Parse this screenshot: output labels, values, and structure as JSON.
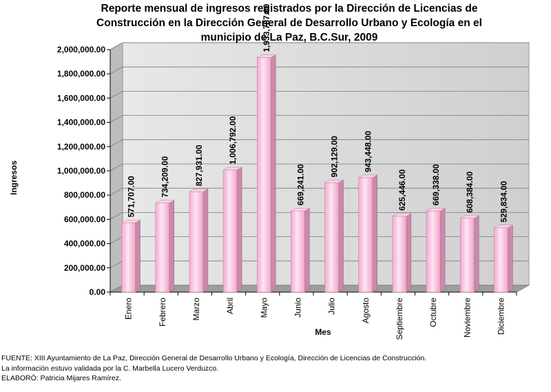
{
  "title_lines": [
    "Reporte mensual de ingresos registrados por la Dirección de Licencias de",
    "Construcción en la Dirección General de Desarrollo Urbano y Ecología en el",
    "municipio de La Paz, B.C.Sur, 2009"
  ],
  "footer_lines": [
    "FUENTE: XIII Ayuntamiento de La Paz, Dirección General de Desarrollo Urbano y Ecología, Dirección de Licencias de Construcción.",
    "La información estuvo validada por la C. Marbella Lucero Verduzco.",
    "ELABORÓ: Patricia Mijares Ramírez."
  ],
  "chart_data": {
    "type": "bar",
    "xlabel": "Mes",
    "ylabel": "Ingresos",
    "ylim": [
      0,
      2000000
    ],
    "ytick_step": 200000,
    "ytick_labels": [
      "0.00",
      "200,000.00",
      "400,000.00",
      "600,000.00",
      "800,000.00",
      "1,000,000.00",
      "1,200,000.00",
      "1,400,000.00",
      "1,600,000.00",
      "1,800,000.00",
      "2,000,000.00"
    ],
    "grid": true,
    "bar_color": "#f7b7da",
    "categories": [
      "Enero",
      "Febrero",
      "Marzo",
      "Abril",
      "Mayo",
      "Junio",
      "Julio",
      "Agosto",
      "Septiembre",
      "Octubre",
      "Noviembre",
      "Diciembre"
    ],
    "values": [
      571707,
      734209,
      827931,
      1006792,
      1933787,
      669241,
      902129,
      943448,
      625446,
      669338,
      608384,
      529834
    ],
    "value_labels": [
      "571,707.00",
      "734,209.00",
      "827,931.00",
      "1,006,792.00",
      "1,933,787.00",
      "669,241.00",
      "902,129.00",
      "943,448.00",
      "625,446.00",
      "669,338.00",
      "608,384.00",
      "529,834.00"
    ]
  }
}
